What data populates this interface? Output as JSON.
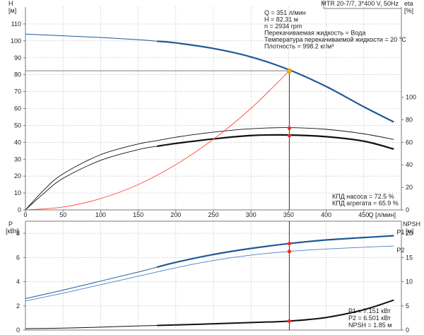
{
  "chart_data": [
    {
      "id": "upper",
      "type": "line",
      "title": "MTR 20-7/7, 3*400 V, 50Hz",
      "xlabel": "Q [л/мин]",
      "ylabel_left_line1": "H",
      "ylabel_left_line2": "[м]",
      "ylabel_right_line1": "eta",
      "ylabel_right_line2": "[%]",
      "xlim": [
        0,
        500
      ],
      "ylim_left": [
        0,
        120
      ],
      "ylim_right": [
        0,
        180
      ],
      "x_ticks": [
        0,
        50,
        100,
        150,
        200,
        250,
        300,
        350,
        400,
        450
      ],
      "y_left_ticks": [
        0,
        10,
        20,
        30,
        40,
        50,
        60,
        70,
        80,
        90,
        100,
        110
      ],
      "y_right_ticks": [
        0,
        20,
        40,
        60,
        80,
        100
      ],
      "grid": true,
      "info_lines": [
        "Q = 351 л/мин",
        "H = 82.31 м",
        "n = 2934 rpm",
        "Перекачиваемая жидкость = Вода",
        "Температура перекачиваемой жидкости = 20 °C",
        "Плотность = 998.2 кг/м³"
      ],
      "efficiency_labels": [
        "КПД насоса = 72.5 %",
        "КПД агрегата = 65.9 %"
      ],
      "duty_point": {
        "x": 351,
        "y": 82.31
      },
      "efficiency_points": [
        {
          "x": 351,
          "y": 72.5
        },
        {
          "x": 351,
          "y": 65.9
        }
      ],
      "colors": {
        "head": "#1f5a96",
        "efficiency": "#111111",
        "system": "#ff4a3a",
        "marker": "#e53030",
        "duty": "#f4b000"
      },
      "series": [
        {
          "axis": "left",
          "x": [
            0,
            50,
            100,
            150,
            175,
            200,
            250,
            300,
            350,
            400,
            450,
            490
          ],
          "y": [
            104,
            103,
            102,
            100.7,
            99.8,
            98.8,
            95.5,
            90.5,
            83,
            73,
            61,
            52
          ]
        },
        {
          "axis": "right",
          "x": [
            0,
            25,
            50,
            100,
            150,
            175,
            200,
            250,
            300,
            350,
            400,
            450,
            490
          ],
          "y": [
            0,
            18,
            32,
            49,
            58.5,
            61.5,
            64.5,
            69,
            72,
            73,
            71.5,
            67.5,
            62.5
          ]
        },
        {
          "axis": "right",
          "x": [
            0,
            25,
            50,
            100,
            150,
            175,
            200,
            250,
            300,
            350,
            400,
            450,
            490
          ],
          "y": [
            0,
            15,
            28,
            44,
            53.5,
            56.5,
            59,
            63,
            66,
            66.5,
            65,
            61,
            54
          ]
        },
        {
          "axis": "left",
          "x": [
            0,
            50,
            100,
            150,
            200,
            250,
            300,
            351
          ],
          "y": [
            0,
            1.7,
            6.7,
            15,
            26.8,
            41.8,
            60.1,
            82.31
          ]
        }
      ]
    },
    {
      "id": "lower",
      "type": "line",
      "xlim": [
        0,
        500
      ],
      "ylabel_left_line1": "P",
      "ylabel_left_line2": "[кВт]",
      "ylabel_right_line1": "NPSH",
      "ylabel_right_line2": "[м]",
      "ylim_left": [
        0,
        9
      ],
      "ylim_right": [
        0,
        22.5
      ],
      "y_left_ticks": [
        0,
        2,
        4,
        6,
        8
      ],
      "y_right_ticks": [
        0,
        5,
        10,
        15,
        20
      ],
      "grid": true,
      "value_labels": [
        "P1 = 7.151 кВт",
        "P2 = 6.501 кВт",
        "NPSH = 1.85 м"
      ],
      "duty_points": [
        {
          "x": 351,
          "y": 7.151,
          "axis": "left"
        },
        {
          "x": 351,
          "y": 6.501,
          "axis": "left"
        },
        {
          "x": 351,
          "y": 1.85,
          "axis": "right"
        }
      ],
      "colors": {
        "p1": "#1f5a96",
        "p2": "#4a7fc0",
        "npsh": "#111111",
        "marker": "#e53030"
      },
      "series": [
        {
          "name": "P1",
          "axis": "left",
          "x": [
            0,
            50,
            100,
            150,
            175,
            200,
            250,
            300,
            350,
            400,
            450,
            490
          ],
          "y": [
            2.6,
            3.3,
            4.05,
            4.8,
            5.2,
            5.6,
            6.25,
            6.75,
            7.15,
            7.45,
            7.65,
            7.8
          ]
        },
        {
          "name": "P2",
          "axis": "left",
          "x": [
            0,
            50,
            100,
            150,
            200,
            250,
            300,
            350,
            400,
            450,
            490
          ],
          "y": [
            2.4,
            3.05,
            3.75,
            4.45,
            5.15,
            5.75,
            6.2,
            6.5,
            6.7,
            6.85,
            6.95
          ]
        },
        {
          "name": "",
          "axis": "right",
          "x": [
            0,
            50,
            100,
            150,
            175,
            200,
            250,
            300,
            350,
            400,
            450,
            490
          ],
          "y": [
            0.3,
            0.4,
            0.6,
            0.85,
            0.95,
            1.05,
            1.3,
            1.55,
            1.85,
            2.6,
            4.2,
            6.2
          ]
        }
      ]
    }
  ]
}
